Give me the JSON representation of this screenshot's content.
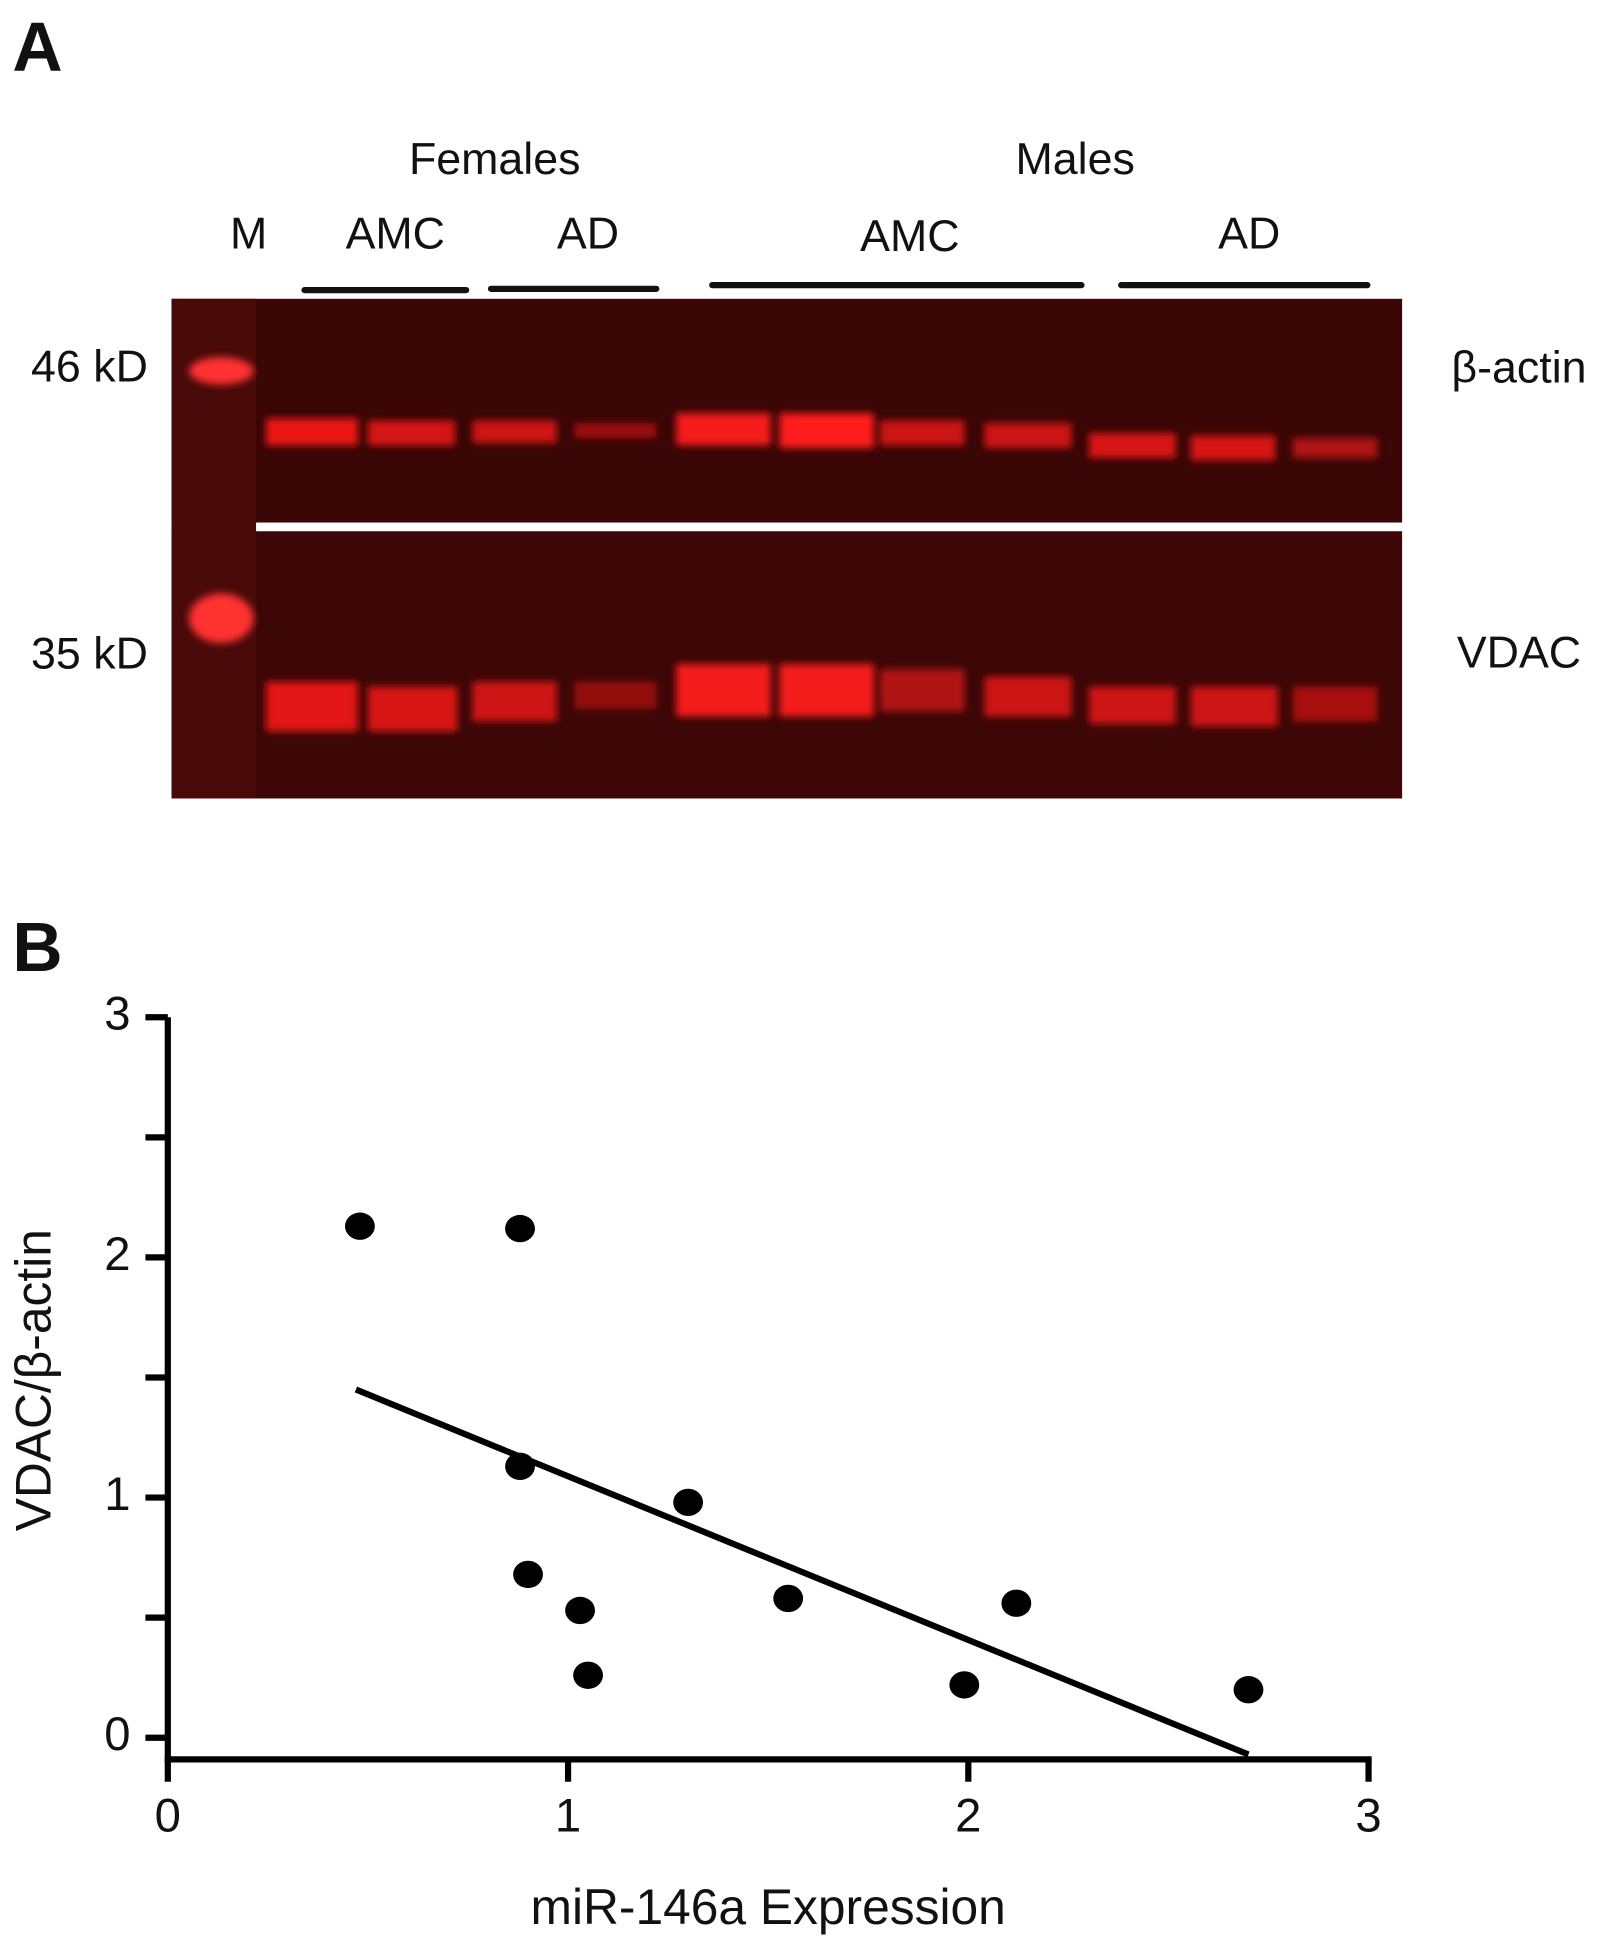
{
  "panel_a": {
    "label": "A",
    "groups": [
      "Females",
      "Males"
    ],
    "lanes": [
      "M",
      "AMC",
      "AD",
      "AMC",
      "AD"
    ],
    "markers": [
      "46 kD",
      "35 kD"
    ],
    "proteins": [
      "β-actin",
      "VDAC"
    ]
  },
  "chart_data": {
    "type": "scatter",
    "panel_label": "B",
    "x_label": "miR-146a Expression",
    "y_label": "VDAC/β-actin",
    "x": [
      0.48,
      0.88,
      0.88,
      0.9,
      1.03,
      1.05,
      1.3,
      1.55,
      2.12,
      1.99,
      2.7
    ],
    "y": [
      2.13,
      2.12,
      1.13,
      0.68,
      0.53,
      0.26,
      0.98,
      0.58,
      0.56,
      0.22,
      0.2
    ],
    "color": "#000000",
    "fit": {
      "x": [
        0.47,
        2.7
      ],
      "y": [
        1.45,
        -0.07
      ]
    },
    "xlim": [
      0,
      3
    ],
    "ylim": [
      -0.09,
      3
    ],
    "xticks": [
      0,
      1,
      2,
      3
    ],
    "yticks": [
      0,
      1,
      2,
      3
    ],
    "y_minor_ticks": [
      0.5,
      1.5,
      2.5
    ]
  }
}
